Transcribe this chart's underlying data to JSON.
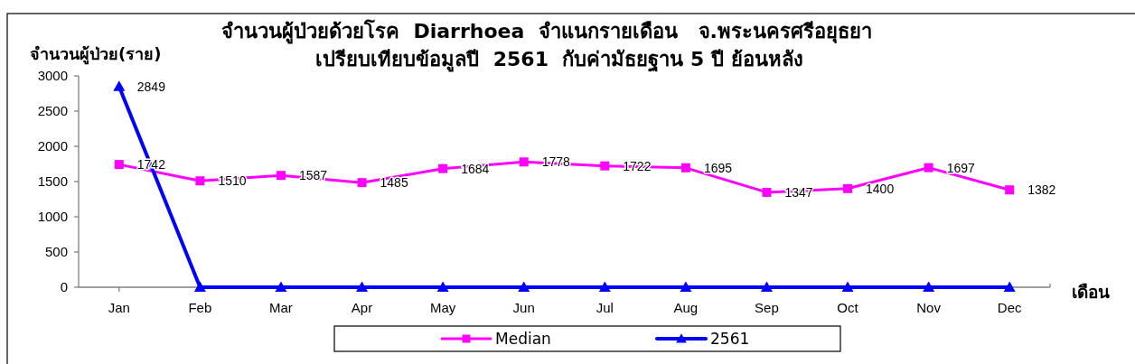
{
  "chart_data": {
    "type": "line",
    "title": "จำนวนผู้ป่วยด้วยโรค  Diarrhoea  จำแนกรายเดือน   จ.พระนครศรีอยุธยา",
    "subtitle": "เปรียบเทียบข้อมูลปี  2561  กับค่ามัธยฐาน 5 ปี ย้อนหลัง",
    "ylabel": "จำนวนผู้ป่วย(ราย)",
    "xlabel": "เดือน",
    "categories": [
      "Jan",
      "Feb",
      "Mar",
      "Apr",
      "May",
      "Jun",
      "Jul",
      "Aug",
      "Sep",
      "Oct",
      "Nov",
      "Dec"
    ],
    "series": [
      {
        "name": "Median",
        "color": "#ff00ff",
        "marker": "square",
        "values": [
          1742,
          1510,
          1587,
          1485,
          1684,
          1778,
          1722,
          1695,
          1347,
          1400,
          1697,
          1382
        ],
        "value_labels": [
          "1742",
          "1510",
          "1587",
          "1485",
          "1684",
          "1778",
          "1722",
          "1695",
          "1347",
          "1400",
          "1697",
          "1382"
        ]
      },
      {
        "name": "2561",
        "color": "#0000ff",
        "marker": "triangle",
        "values": [
          2849,
          0,
          0,
          0,
          0,
          0,
          0,
          0,
          0,
          0,
          0,
          0
        ],
        "value_labels": [
          "2849",
          null,
          null,
          null,
          null,
          null,
          null,
          null,
          null,
          null,
          null,
          null
        ]
      }
    ],
    "ylim": [
      0,
      3000
    ],
    "yticks": [
      0,
      500,
      1000,
      1500,
      2000,
      2500,
      3000
    ],
    "legend": "bottom"
  }
}
